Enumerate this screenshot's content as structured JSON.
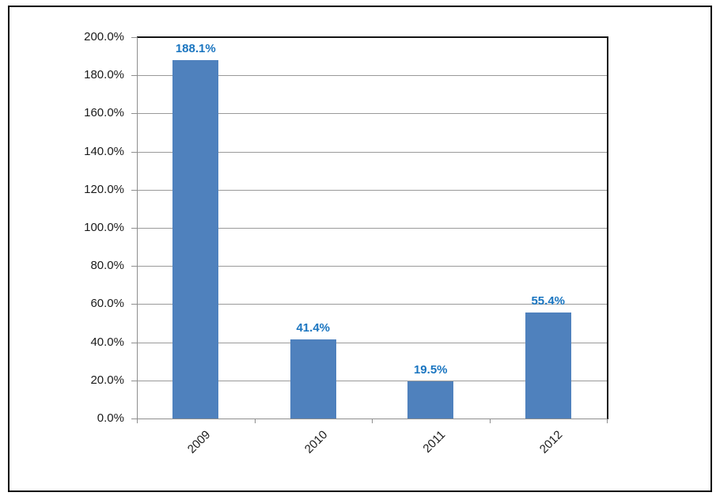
{
  "chart_data": {
    "type": "bar",
    "categories": [
      "2009",
      "2010",
      "2011",
      "2012"
    ],
    "values": [
      188.1,
      41.4,
      19.5,
      55.4
    ],
    "data_labels": [
      "188.1%",
      "41.4%",
      "19.5%",
      "55.4%"
    ],
    "y_tick_labels": [
      "0.0%",
      "20.0%",
      "40.0%",
      "60.0%",
      "80.0%",
      "100.0%",
      "120.0%",
      "140.0%",
      "160.0%",
      "180.0%",
      "200.0%"
    ],
    "ylim": [
      0,
      200
    ],
    "y_tick_step": 20,
    "title": "",
    "xlabel": "",
    "ylabel": "",
    "grid": true,
    "legend": false,
    "colors": {
      "bar_fill": "#4F81BD",
      "data_label": "#1A75C0",
      "gridline": "#9A9A9A",
      "axis_line": "#8E8E8E",
      "plot_border": "#141414",
      "chart_border": "#000000",
      "tick_label": "#1A1A1A",
      "background": "#FFFFFF"
    }
  }
}
